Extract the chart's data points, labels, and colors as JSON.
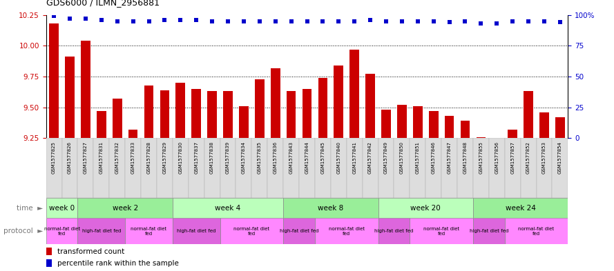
{
  "title": "GDS6000 / ILMN_2956881",
  "samples": [
    "GSM1577825",
    "GSM1577826",
    "GSM1577827",
    "GSM1577831",
    "GSM1577832",
    "GSM1577833",
    "GSM1577828",
    "GSM1577829",
    "GSM1577830",
    "GSM1577837",
    "GSM1577838",
    "GSM1577839",
    "GSM1577834",
    "GSM1577835",
    "GSM1577836",
    "GSM1577843",
    "GSM1577844",
    "GSM1577845",
    "GSM1577840",
    "GSM1577841",
    "GSM1577842",
    "GSM1577849",
    "GSM1577850",
    "GSM1577851",
    "GSM1577846",
    "GSM1577847",
    "GSM1577848",
    "GSM1577855",
    "GSM1577856",
    "GSM1577857",
    "GSM1577852",
    "GSM1577853",
    "GSM1577854"
  ],
  "bar_values": [
    10.18,
    9.91,
    10.04,
    9.47,
    9.57,
    9.32,
    9.68,
    9.64,
    9.7,
    9.65,
    9.63,
    9.63,
    9.51,
    9.73,
    9.82,
    9.63,
    9.65,
    9.74,
    9.84,
    9.97,
    9.77,
    9.48,
    9.52,
    9.51,
    9.47,
    9.43,
    9.39,
    9.26,
    9.25,
    9.32,
    9.63,
    9.46,
    9.42
  ],
  "percentile_values": [
    99,
    97,
    97,
    96,
    95,
    95,
    95,
    96,
    96,
    96,
    95,
    95,
    95,
    95,
    95,
    95,
    95,
    95,
    95,
    95,
    96,
    95,
    95,
    95,
    95,
    94,
    95,
    93,
    93,
    95,
    95,
    95,
    94
  ],
  "ylim_left": [
    9.25,
    10.25
  ],
  "ylim_right": [
    0,
    100
  ],
  "yticks_left": [
    9.25,
    9.5,
    9.75,
    10.0,
    10.25
  ],
  "yticks_right": [
    0,
    25,
    50,
    75,
    100
  ],
  "bar_color": "#cc0000",
  "dot_color": "#0000cc",
  "gridline_y": [
    9.5,
    9.75,
    10.0
  ],
  "week_boundaries": [
    0,
    2,
    8,
    15,
    21,
    27,
    33
  ],
  "week_labels": [
    "week 0",
    "week 2",
    "week 4",
    "week 8",
    "week 20",
    "week 24"
  ],
  "week_colors": [
    "#aaffaa",
    "#ccffcc",
    "#aaffaa",
    "#ccffcc",
    "#aaffaa",
    "#ccffcc"
  ],
  "protocol_groups": [
    {
      "label": "normal-fat diet\nfed",
      "start": 0,
      "end": 2,
      "color": "#ff88ff"
    },
    {
      "label": "high-fat diet fed",
      "start": 2,
      "end": 5,
      "color": "#dd66dd"
    },
    {
      "label": "normal-fat diet\nfed",
      "start": 5,
      "end": 8,
      "color": "#ff88ff"
    },
    {
      "label": "high-fat diet fed",
      "start": 8,
      "end": 11,
      "color": "#dd66dd"
    },
    {
      "label": "normal-fat diet\nfed",
      "start": 11,
      "end": 15,
      "color": "#ff88ff"
    },
    {
      "label": "high-fat diet fed",
      "start": 15,
      "end": 17,
      "color": "#dd66dd"
    },
    {
      "label": "normal-fat diet\nfed",
      "start": 17,
      "end": 21,
      "color": "#ff88ff"
    },
    {
      "label": "high-fat diet fed",
      "start": 21,
      "end": 23,
      "color": "#dd66dd"
    },
    {
      "label": "normal-fat diet\nfed",
      "start": 23,
      "end": 27,
      "color": "#ff88ff"
    },
    {
      "label": "high-fat diet fed",
      "start": 27,
      "end": 29,
      "color": "#dd66dd"
    },
    {
      "label": "normal-fat diet\nfed",
      "start": 29,
      "end": 33,
      "color": "#ff88ff"
    }
  ]
}
